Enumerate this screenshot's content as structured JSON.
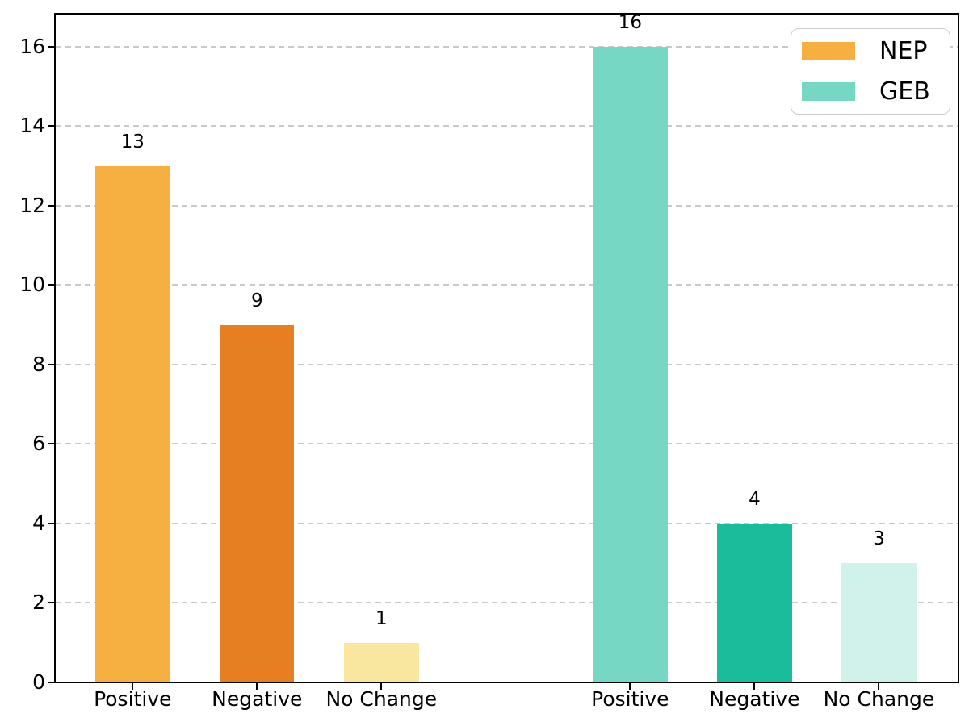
{
  "chart_data": {
    "type": "bar",
    "title": "",
    "xlabel": "",
    "ylabel": "",
    "groups": [
      {
        "name": "NEP",
        "categories": [
          "Positive",
          "Negative",
          "No Change"
        ],
        "values": [
          13,
          9,
          1
        ],
        "colors": [
          "#F5B041",
          "#E67E22",
          "#F9E79F"
        ]
      },
      {
        "name": "GEB",
        "categories": [
          "Positive",
          "Negative",
          "No Change"
        ],
        "values": [
          16,
          4,
          3
        ],
        "colors": [
          "#76D7C4",
          "#1ABC9C",
          "#D1F2EB"
        ]
      }
    ],
    "yticks": [
      0,
      2,
      4,
      6,
      8,
      10,
      12,
      14,
      16
    ],
    "ylim": [
      0,
      16.83
    ],
    "grid": {
      "axis": "y",
      "style": "dashed",
      "color": "#c9c9c9"
    },
    "axis_color": "#000000",
    "legend": {
      "position": "top-right",
      "entries": [
        {
          "label": "NEP",
          "color": "#F5B041"
        },
        {
          "label": "GEB",
          "color": "#76D7C4"
        }
      ]
    }
  }
}
